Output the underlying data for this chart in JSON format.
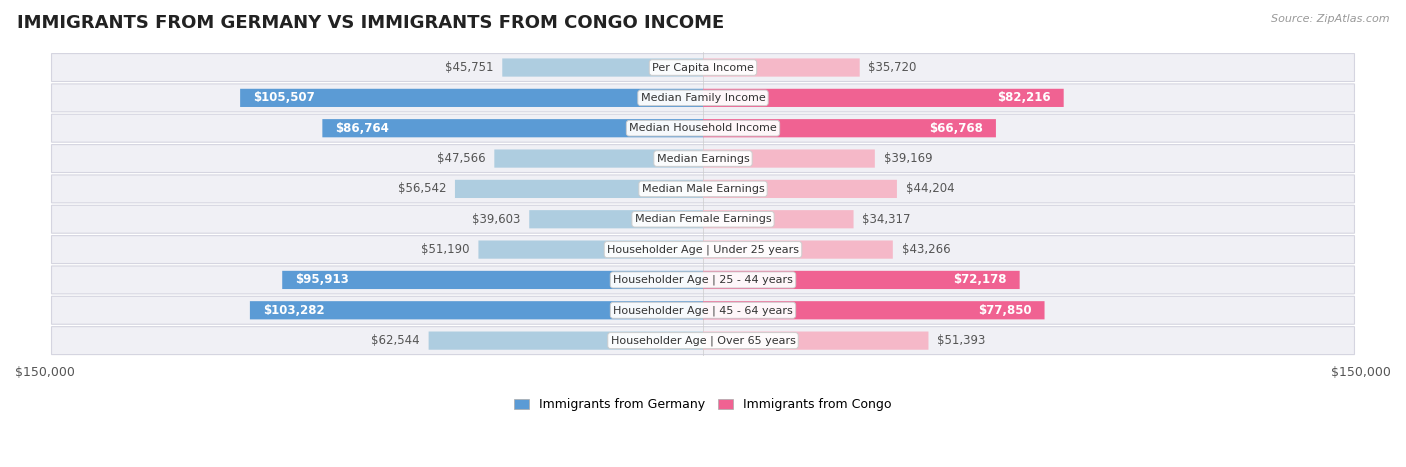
{
  "title": "IMMIGRANTS FROM GERMANY VS IMMIGRANTS FROM CONGO INCOME",
  "source": "Source: ZipAtlas.com",
  "categories": [
    "Per Capita Income",
    "Median Family Income",
    "Median Household Income",
    "Median Earnings",
    "Median Male Earnings",
    "Median Female Earnings",
    "Householder Age | Under 25 years",
    "Householder Age | 25 - 44 years",
    "Householder Age | 45 - 64 years",
    "Householder Age | Over 65 years"
  ],
  "germany_values": [
    45751,
    105507,
    86764,
    47566,
    56542,
    39603,
    51190,
    95913,
    103282,
    62544
  ],
  "congo_values": [
    35720,
    82216,
    66768,
    39169,
    44204,
    34317,
    43266,
    72178,
    77850,
    51393
  ],
  "germany_labels": [
    "$45,751",
    "$105,507",
    "$86,764",
    "$47,566",
    "$56,542",
    "$39,603",
    "$51,190",
    "$95,913",
    "$103,282",
    "$62,544"
  ],
  "congo_labels": [
    "$35,720",
    "$82,216",
    "$66,768",
    "$39,169",
    "$44,204",
    "$34,317",
    "$43,266",
    "$72,178",
    "$77,850",
    "$51,393"
  ],
  "germany_dark_threshold": 80000,
  "congo_dark_threshold": 60000,
  "germany_color_dark": "#5b9bd5",
  "germany_color_light": "#aecde0",
  "congo_color_dark": "#f06292",
  "congo_color_light": "#f5b8c8",
  "max_value": 150000,
  "xlabel_left": "$150,000",
  "xlabel_right": "$150,000",
  "legend_germany": "Immigrants from Germany",
  "legend_congo": "Immigrants from Congo",
  "title_fontsize": 13,
  "label_fontsize": 8.5,
  "category_fontsize": 8.0,
  "row_bg_color": "#f0f0f5",
  "row_border_color": "#d5d5e0"
}
